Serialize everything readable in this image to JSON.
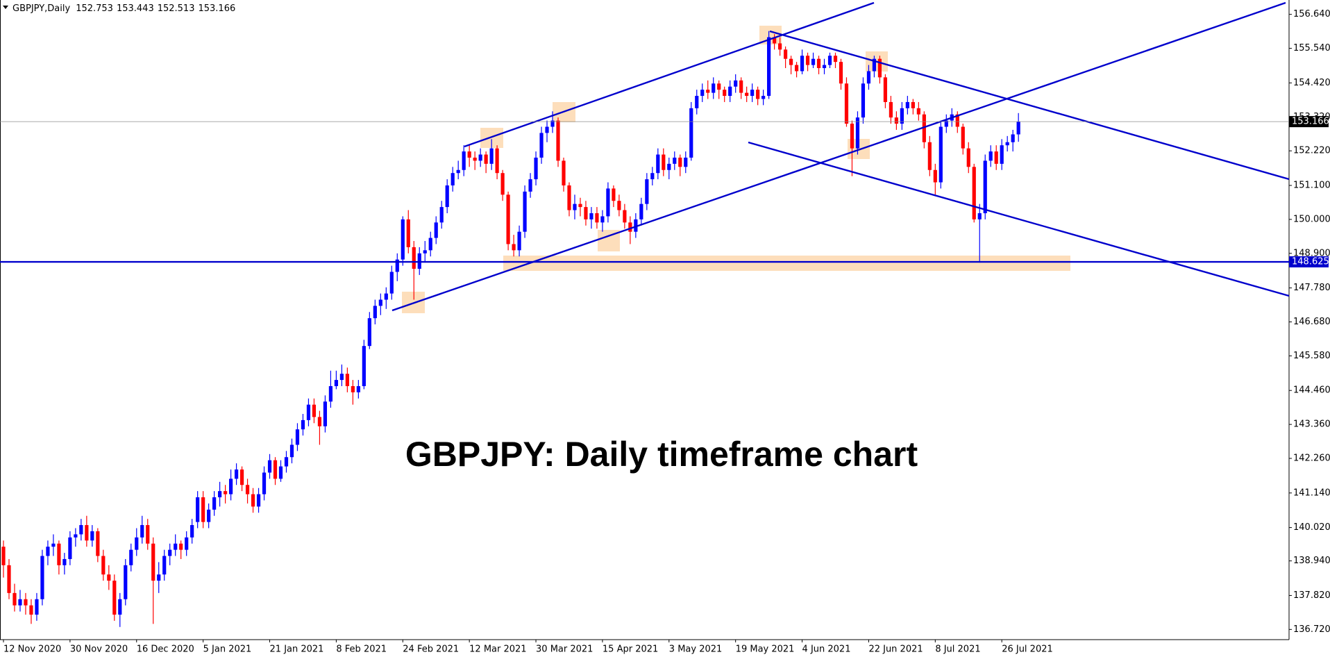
{
  "chart_data": {
    "type": "candlestick",
    "symbol": "GBPJPY,Daily",
    "annotation": "GBPJPY: Daily timeframe chart",
    "up_color": "#0000ff",
    "down_color": "#ff0000",
    "hline": 148.625,
    "hline_color": "#0000cc",
    "ylim": [
      136.39,
      156.97
    ],
    "yticks": [
      {
        "value": 156.64,
        "label": "156.640"
      },
      {
        "value": 155.54,
        "label": "155.540"
      },
      {
        "value": 154.42,
        "label": "154.420"
      },
      {
        "value": 153.32,
        "label": "153.320"
      },
      {
        "value": 152.22,
        "label": "152.220"
      },
      {
        "value": 151.1,
        "label": "151.100"
      },
      {
        "value": 150.0,
        "label": "150.000"
      },
      {
        "value": 148.9,
        "label": "148.900"
      },
      {
        "value": 147.78,
        "label": "147.780"
      },
      {
        "value": 146.68,
        "label": "146.680"
      },
      {
        "value": 145.58,
        "label": "145.580"
      },
      {
        "value": 144.46,
        "label": "144.460"
      },
      {
        "value": 143.36,
        "label": "143.360"
      },
      {
        "value": 142.26,
        "label": "142.260"
      },
      {
        "value": 141.14,
        "label": "141.140"
      },
      {
        "value": 140.02,
        "label": "140.020"
      },
      {
        "value": 138.94,
        "label": "138.940"
      },
      {
        "value": 137.82,
        "label": "137.820"
      },
      {
        "value": 136.72,
        "label": "136.720"
      }
    ],
    "categories": [
      "12 Nov 2020",
      null,
      null,
      null,
      null,
      null,
      null,
      null,
      null,
      null,
      null,
      null,
      "30 Nov 2020",
      null,
      null,
      null,
      null,
      null,
      null,
      null,
      null,
      null,
      null,
      null,
      "16 Dec 2020",
      null,
      null,
      null,
      null,
      null,
      null,
      null,
      null,
      null,
      null,
      null,
      "5 Jan 2021",
      null,
      null,
      null,
      null,
      null,
      null,
      null,
      null,
      null,
      null,
      null,
      "21 Jan 2021",
      null,
      null,
      null,
      null,
      null,
      null,
      null,
      null,
      null,
      null,
      null,
      "8 Feb 2021",
      null,
      null,
      null,
      null,
      null,
      null,
      null,
      null,
      null,
      null,
      null,
      "24 Feb 2021",
      null,
      null,
      null,
      null,
      null,
      null,
      null,
      null,
      null,
      null,
      null,
      "12 Mar 2021",
      null,
      null,
      null,
      null,
      null,
      null,
      null,
      null,
      null,
      null,
      null,
      "30 Mar 2021",
      null,
      null,
      null,
      null,
      null,
      null,
      null,
      null,
      null,
      null,
      null,
      "15 Apr 2021",
      null,
      null,
      null,
      null,
      null,
      null,
      null,
      null,
      null,
      null,
      null,
      "3 May 2021",
      null,
      null,
      null,
      null,
      null,
      null,
      null,
      null,
      null,
      null,
      null,
      "19 May 2021",
      null,
      null,
      null,
      null,
      null,
      null,
      null,
      null,
      null,
      null,
      null,
      "4 Jun 2021",
      null,
      null,
      null,
      null,
      null,
      null,
      null,
      null,
      null,
      null,
      null,
      "22 Jun 2021",
      null,
      null,
      null,
      null,
      null,
      null,
      null,
      null,
      null,
      null,
      null,
      "8 Jul 2021",
      null,
      null,
      null,
      null,
      null,
      null,
      null,
      null,
      null,
      null,
      null,
      "26 Jul 2021",
      null,
      null,
      null
    ],
    "open": [
      139.4,
      138.8,
      137.9,
      137.5,
      137.7,
      137.5,
      137.2,
      137.7,
      139.1,
      139.4,
      139.5,
      138.8,
      139.0,
      139.7,
      139.8,
      140.1,
      139.6,
      139.9,
      139.1,
      138.5,
      138.3,
      137.2,
      137.7,
      138.8,
      139.3,
      139.7,
      140.1,
      139.5,
      138.3,
      138.5,
      139.1,
      139.3,
      139.5,
      139.3,
      139.7,
      140.2,
      141.0,
      140.2,
      140.6,
      141.0,
      141.2,
      141.1,
      141.6,
      141.9,
      141.4,
      141.1,
      140.7,
      141.1,
      141.8,
      142.2,
      141.6,
      142.0,
      142.3,
      142.7,
      143.2,
      143.5,
      144.0,
      143.6,
      143.3,
      144.1,
      144.6,
      144.8,
      145.0,
      144.6,
      144.4,
      144.6,
      145.9,
      146.8,
      147.2,
      147.4,
      147.6,
      148.3,
      148.7,
      150.0,
      149.1,
      148.4,
      148.9,
      149.0,
      149.4,
      149.9,
      150.4,
      151.1,
      151.5,
      151.6,
      152.2,
      152.0,
      151.9,
      152.1,
      151.8,
      152.3,
      151.5,
      150.8,
      149.2,
      149.0,
      149.6,
      150.9,
      151.3,
      152.0,
      152.8,
      153.0,
      153.2,
      151.9,
      151.1,
      150.3,
      150.5,
      150.4,
      150.0,
      150.2,
      149.9,
      150.1,
      151.0,
      150.6,
      150.3,
      149.9,
      149.6,
      150.0,
      150.5,
      151.3,
      151.5,
      152.1,
      151.6,
      151.8,
      152.0,
      151.7,
      152.0,
      153.6,
      154.0,
      154.2,
      154.1,
      154.4,
      154.2,
      154.0,
      154.3,
      154.5,
      154.1,
      154.0,
      154.2,
      153.9,
      154.0,
      155.9,
      155.7,
      155.5,
      155.2,
      155.0,
      154.8,
      155.3,
      155.0,
      155.2,
      154.9,
      155.0,
      155.3,
      155.1,
      154.4,
      153.1,
      152.3,
      153.3,
      154.4,
      154.8,
      155.2,
      154.6,
      153.8,
      153.3,
      153.1,
      153.6,
      153.8,
      153.6,
      153.4,
      152.5,
      151.6,
      151.2,
      153.0,
      153.2,
      153.4,
      153.0,
      152.3,
      151.7,
      150.0,
      150.2,
      151.9,
      152.2,
      151.8,
      152.4,
      152.5,
      152.753
    ],
    "high": [
      139.6,
      139.0,
      138.2,
      138.0,
      137.9,
      137.7,
      137.9,
      139.3,
      139.6,
      139.8,
      139.6,
      139.2,
      139.9,
      140.0,
      140.3,
      140.4,
      140.1,
      140.0,
      139.3,
      138.8,
      138.5,
      137.9,
      139.0,
      139.5,
      140.0,
      140.4,
      140.3,
      139.7,
      138.9,
      139.3,
      139.5,
      139.8,
      139.6,
      139.9,
      140.3,
      141.2,
      141.2,
      140.8,
      141.2,
      141.5,
      141.4,
      141.9,
      142.1,
      142.0,
      141.6,
      141.3,
      141.3,
      142.0,
      142.4,
      142.3,
      142.2,
      142.5,
      142.9,
      143.4,
      143.7,
      144.2,
      144.2,
      143.8,
      144.3,
      145.1,
      145.1,
      145.3,
      145.2,
      144.8,
      144.8,
      146.1,
      147.0,
      147.4,
      147.6,
      147.8,
      148.5,
      148.9,
      150.1,
      150.3,
      149.3,
      149.1,
      149.3,
      149.6,
      150.1,
      150.6,
      151.3,
      151.7,
      151.9,
      152.4,
      152.4,
      152.2,
      152.3,
      152.2,
      152.6,
      152.4,
      151.6,
      150.9,
      149.5,
      149.8,
      151.1,
      151.5,
      152.2,
      153.0,
      153.2,
      153.5,
      153.3,
      152.0,
      151.2,
      150.8,
      150.7,
      150.6,
      150.4,
      150.4,
      150.3,
      151.2,
      151.1,
      150.8,
      150.5,
      150.1,
      150.2,
      150.7,
      151.5,
      151.7,
      152.3,
      152.3,
      152.0,
      152.2,
      152.1,
      152.2,
      153.8,
      154.2,
      154.4,
      154.5,
      154.6,
      154.5,
      154.3,
      154.5,
      154.7,
      154.6,
      154.3,
      154.4,
      154.3,
      154.2,
      156.1,
      156.0,
      155.9,
      155.6,
      155.3,
      155.1,
      155.5,
      155.4,
      155.4,
      155.3,
      155.2,
      155.4,
      155.4,
      155.2,
      154.6,
      153.2,
      153.5,
      154.6,
      155.0,
      155.3,
      155.3,
      154.7,
      154.0,
      153.5,
      153.8,
      154.0,
      153.9,
      153.8,
      153.5,
      152.7,
      151.8,
      153.2,
      153.4,
      153.6,
      153.5,
      153.1,
      152.5,
      151.8,
      150.5,
      152.1,
      152.4,
      152.4,
      152.6,
      152.7,
      152.9,
      153.443
    ],
    "low": [
      138.4,
      137.7,
      137.3,
      137.3,
      137.2,
      136.9,
      137.0,
      137.5,
      138.8,
      139.1,
      138.5,
      138.5,
      138.8,
      139.4,
      139.6,
      139.4,
      139.4,
      138.9,
      138.3,
      138.0,
      137.0,
      136.8,
      137.5,
      138.6,
      139.1,
      139.5,
      139.3,
      136.9,
      137.9,
      138.3,
      138.8,
      139.1,
      139.0,
      139.1,
      139.5,
      140.0,
      140.0,
      140.0,
      140.4,
      140.7,
      140.8,
      140.9,
      141.4,
      141.2,
      140.8,
      140.5,
      140.5,
      140.9,
      141.6,
      141.4,
      141.5,
      141.8,
      142.1,
      142.5,
      143.0,
      143.3,
      143.4,
      142.7,
      143.1,
      143.9,
      144.5,
      144.6,
      144.4,
      144.0,
      144.2,
      144.5,
      145.8,
      146.6,
      146.9,
      147.1,
      147.4,
      148.0,
      148.5,
      148.9,
      147.4,
      148.2,
      148.6,
      148.8,
      149.2,
      149.7,
      150.2,
      150.9,
      151.3,
      151.4,
      151.7,
      151.6,
      151.7,
      151.5,
      151.6,
      151.3,
      150.6,
      149.0,
      148.8,
      148.8,
      149.4,
      150.7,
      151.1,
      151.8,
      152.5,
      152.8,
      151.7,
      150.9,
      150.1,
      150.0,
      150.1,
      149.8,
      149.7,
      149.7,
      149.6,
      149.9,
      150.4,
      150.1,
      149.7,
      149.2,
      149.4,
      149.8,
      150.3,
      151.1,
      151.3,
      151.4,
      151.3,
      151.6,
      151.4,
      151.5,
      151.9,
      153.4,
      153.8,
      153.9,
      153.9,
      153.9,
      153.8,
      153.8,
      154.1,
      153.9,
      153.8,
      153.8,
      153.7,
      153.7,
      153.9,
      155.5,
      155.3,
      154.9,
      154.7,
      154.6,
      154.7,
      154.8,
      154.9,
      154.7,
      154.7,
      154.9,
      154.9,
      154.2,
      153.0,
      151.4,
      152.1,
      153.1,
      154.2,
      154.6,
      154.4,
      153.6,
      153.1,
      152.9,
      152.9,
      153.4,
      153.4,
      153.2,
      152.3,
      151.4,
      150.8,
      151.0,
      152.8,
      153.0,
      152.8,
      152.1,
      151.5,
      149.9,
      148.6,
      150.0,
      151.7,
      151.6,
      151.6,
      152.2,
      152.2,
      152.513
    ],
    "close": [
      138.8,
      137.9,
      137.5,
      137.7,
      137.5,
      137.2,
      137.7,
      139.1,
      139.4,
      139.5,
      138.8,
      139.0,
      139.7,
      139.8,
      140.1,
      139.6,
      139.9,
      139.1,
      138.5,
      138.3,
      137.2,
      137.7,
      138.8,
      139.3,
      139.7,
      140.1,
      139.5,
      138.3,
      138.5,
      139.1,
      139.3,
      139.5,
      139.3,
      139.7,
      140.1,
      141.0,
      140.2,
      140.6,
      141.0,
      141.2,
      141.1,
      141.6,
      141.9,
      141.4,
      141.1,
      140.7,
      141.1,
      141.8,
      142.2,
      141.6,
      142.0,
      142.3,
      142.7,
      143.2,
      143.5,
      144.0,
      143.6,
      143.3,
      144.1,
      144.6,
      144.8,
      145.0,
      144.6,
      144.4,
      144.6,
      145.9,
      146.8,
      147.2,
      147.4,
      147.6,
      148.3,
      148.7,
      150.0,
      149.1,
      148.4,
      148.9,
      149.0,
      149.4,
      149.9,
      150.4,
      151.1,
      151.5,
      151.6,
      152.2,
      152.0,
      151.9,
      152.1,
      151.8,
      152.3,
      151.5,
      150.8,
      149.2,
      149.0,
      149.6,
      150.9,
      151.3,
      152.0,
      152.8,
      153.0,
      153.2,
      151.9,
      151.1,
      150.3,
      150.5,
      150.4,
      150.0,
      150.2,
      149.9,
      150.1,
      151.0,
      150.6,
      150.3,
      149.9,
      149.6,
      150.0,
      150.5,
      151.3,
      151.5,
      152.1,
      151.6,
      151.8,
      152.0,
      151.7,
      152.0,
      153.6,
      154.0,
      154.2,
      154.1,
      154.4,
      154.2,
      154.0,
      154.3,
      154.5,
      154.1,
      154.0,
      154.2,
      153.9,
      154.0,
      155.9,
      155.7,
      155.5,
      155.2,
      155.0,
      154.8,
      155.3,
      155.0,
      155.2,
      154.9,
      155.0,
      155.3,
      155.1,
      154.4,
      153.1,
      152.3,
      153.3,
      154.4,
      154.8,
      155.2,
      154.6,
      153.8,
      153.3,
      153.1,
      153.6,
      153.8,
      153.6,
      153.4,
      152.5,
      151.6,
      151.2,
      153.0,
      153.2,
      153.4,
      153.0,
      152.3,
      151.7,
      150.0,
      150.2,
      151.9,
      152.2,
      151.8,
      152.4,
      152.5,
      152.753,
      153.166
    ]
  }
}
